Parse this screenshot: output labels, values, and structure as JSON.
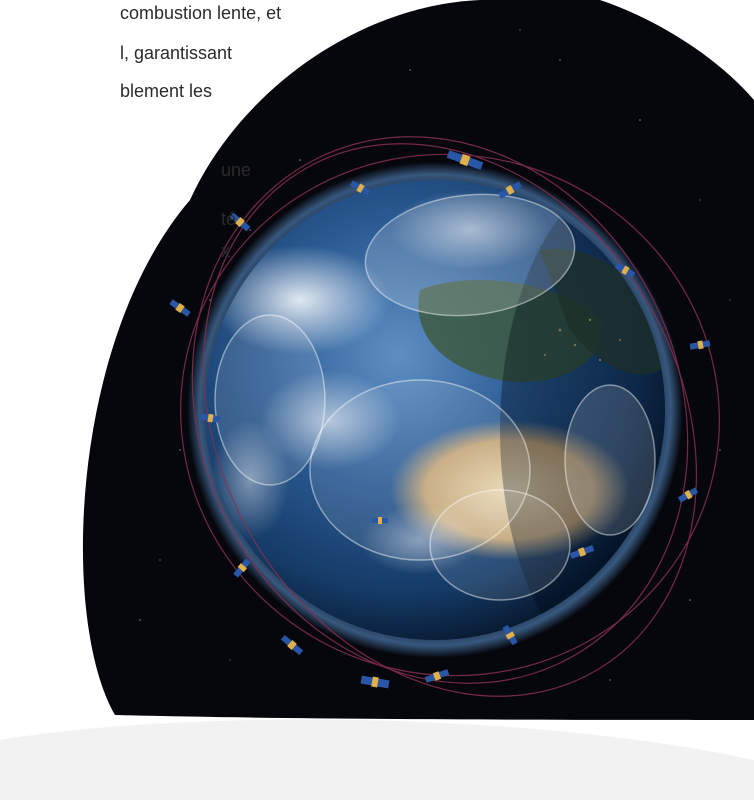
{
  "article": {
    "paragraph1": {
      "line1": "combustion lente, et",
      "line2": "l, garantissant",
      "line3": "blement les"
    },
    "paragraph2": {
      "line1": "une",
      "line2": "té",
      "line3": "x"
    }
  },
  "illustration": {
    "subject": "earth-with-satellite-constellation",
    "colors": {
      "space": "#05070d",
      "ocean": "#1f4f86",
      "land": "#c9b48d",
      "cloud": "#e9eef3",
      "orbit": "#8a3050",
      "footer": "#f2f2f2"
    }
  }
}
